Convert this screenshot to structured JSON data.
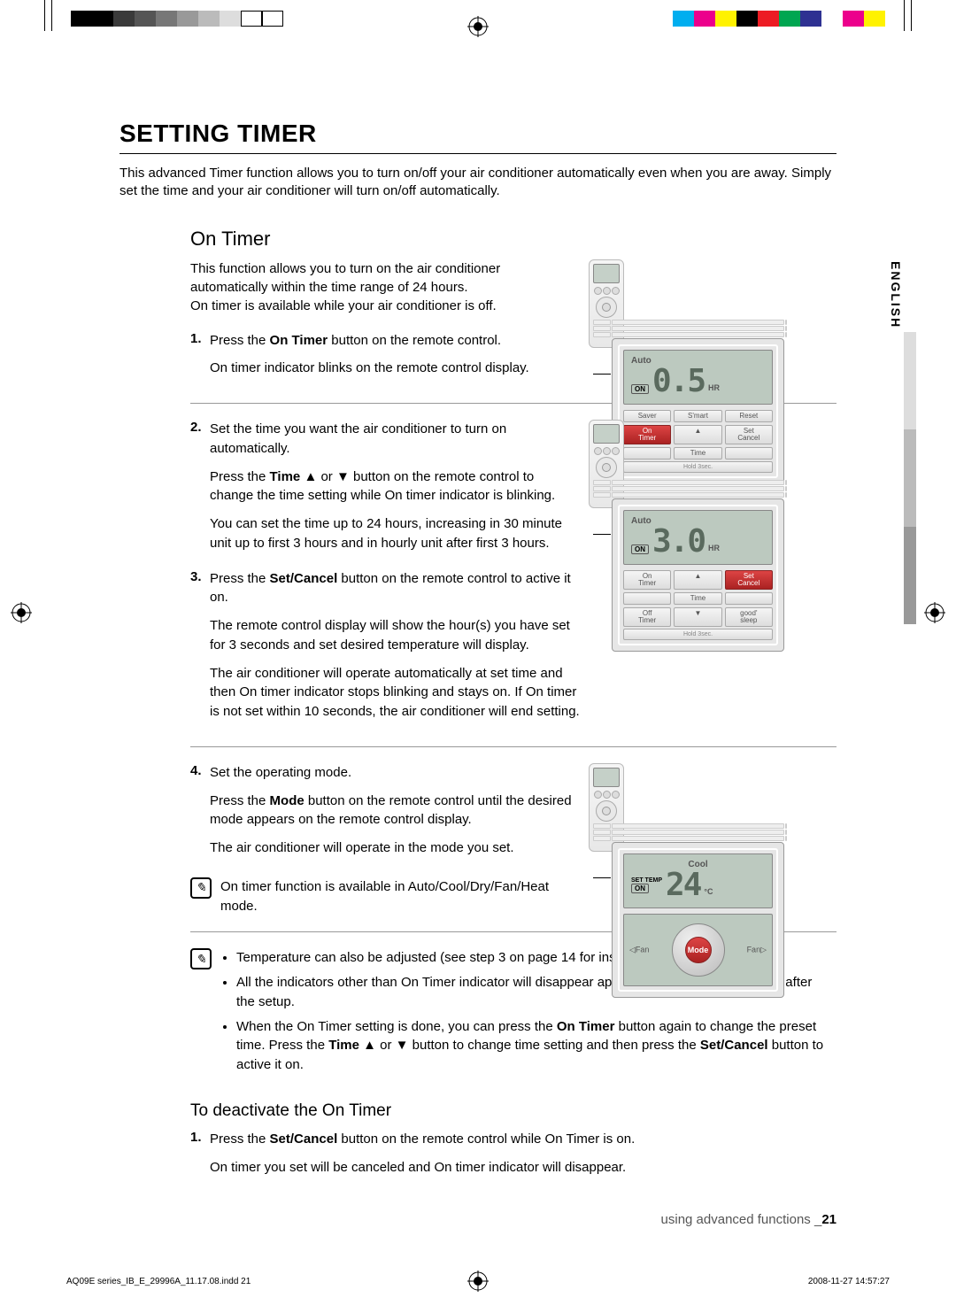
{
  "colorbar_left": [
    "#000000",
    "#000000",
    "#3a3a3a",
    "#555555",
    "#777777",
    "#999999",
    "#bbbbbb",
    "#dddddd",
    "#ffffff",
    "#ffffff"
  ],
  "colorbar_right": [
    "#00aeef",
    "#ec008c",
    "#fff200",
    "#000000",
    "#ed1c24",
    "#00a651",
    "#2e3192",
    "#ffffff",
    "#ec008c",
    "#fff200"
  ],
  "gray_tab": [
    "#dddddd",
    "#bbbbbb",
    "#999999"
  ],
  "title": "SETTING TIMER",
  "intro": "This advanced Timer function allows you to turn on/off your air conditioner automatically even when you are away. Simply set the time and your air conditioner will turn on/off automatically.",
  "lang_tab": "ENGLISH",
  "section_title": "On Timer",
  "desc_l1": "This function allows you to turn on the air conditioner automatically within the time range of 24 hours.",
  "desc_l2": "On timer is available while your air conditioner is off.",
  "step1_num": "1.",
  "step1_a": "Press the ",
  "step1_b": "On Timer",
  "step1_c": " button on the remote control.",
  "step1_d": "On timer indicator blinks on the remote control display.",
  "step2_num": "2.",
  "step2_a": "Set the time you want the air conditioner to turn on automatically.",
  "step2_b1": "Press the ",
  "step2_b2": "Time",
  "step2_b3": " ▲ or ▼ button on the remote control to change the time setting while On timer indicator is blinking.",
  "step2_c": "You can set the time up to 24 hours, increasing in 30 minute unit up to first 3 hours and in hourly unit after first 3 hours.",
  "step3_num": "3.",
  "step3_a1": "Press the ",
  "step3_a2": "Set/Cancel",
  "step3_a3": " button on the remote control to active it on.",
  "step3_b": "The remote control display will show the hour(s) you have set for 3 seconds and set desired temperature will display.",
  "step3_c": "The air conditioner will operate automatically at set time and then On timer indicator stops blinking and stays on. If On timer is not set within 10 seconds, the air conditioner will end setting.",
  "step4_num": "4.",
  "step4_a": "Set the operating mode.",
  "step4_b1": "Press the ",
  "step4_b2": "Mode",
  "step4_b3": " button on the remote control until the desired mode appears on the remote control display.",
  "step4_c": "The air conditioner will operate in the mode you set.",
  "note1": "On timer function is available in Auto/Cool/Dry/Fan/Heat mode.",
  "note2_1": "Temperature can also be adjusted (see step 3 on page 14 for instructions).",
  "note2_2": "All the indicators other than On Timer indicator will disappear approximately after 10 seconds after the setup.",
  "note2_3a": "When the On Timer setting is done, you can press the ",
  "note2_3b": "On Timer",
  "note2_3c": " button again to change the preset time. Press the ",
  "note2_3d": "Time",
  "note2_3e": " ▲ or ▼ button to change time setting and then press the ",
  "note2_3f": "Set/Cancel",
  "note2_3g": " button to active it on.",
  "deact_title": "To deactivate the On Timer",
  "deact_num": "1.",
  "deact_a1": "Press the ",
  "deact_a2": "Set/Cancel",
  "deact_a3": " button on the remote control while On Timer is on.",
  "deact_b": "On timer you set will be canceled and On timer indicator will disappear.",
  "footer_text": "using advanced functions _",
  "footer_page": "21",
  "indd_left": "AQ09E series_IB_E_29996A_11.17.08.indd   21",
  "indd_right": "2008-11-27   14:57:27",
  "fig1": {
    "mode": "Auto",
    "badge": "ON",
    "num": "0.5",
    "hr": "HR",
    "btns": [
      [
        "Saver",
        "S'mart",
        "Reset"
      ],
      [
        "On Timer",
        "▲",
        "Set Cancel"
      ],
      [
        "",
        "Time",
        ""
      ]
    ],
    "hl": [
      1,
      0
    ]
  },
  "fig2": {
    "mode": "Auto",
    "badge": "ON",
    "num": "3.0",
    "hr": "HR",
    "btns": [
      [
        "On Timer",
        "▲",
        "Set Cancel"
      ],
      [
        "",
        "Time",
        ""
      ],
      [
        "Off Timer",
        "▼",
        "good' sleep"
      ]
    ],
    "hl": [
      0,
      2
    ]
  },
  "fig3": {
    "mode": "Cool",
    "settemp": "SET TEMP",
    "badge": "ON",
    "num": "24",
    "deg": "°C",
    "fanl": "◁Fan",
    "modebtn": "Mode",
    "fanr": "Fan▷"
  }
}
